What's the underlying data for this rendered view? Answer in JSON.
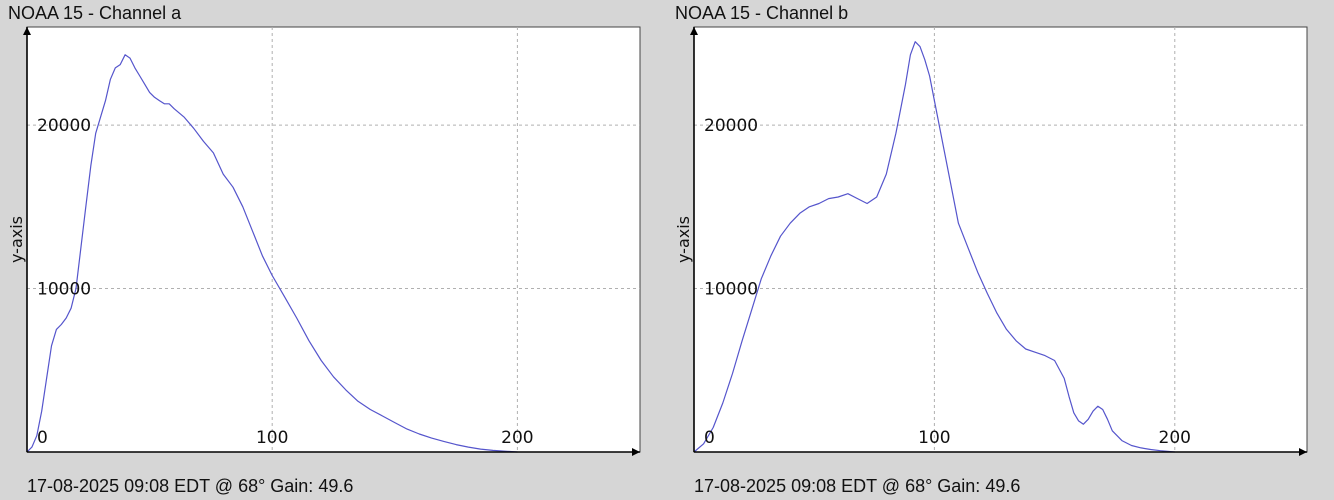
{
  "chart_data": [
    {
      "type": "line",
      "title": "NOAA 15 - Channel a",
      "footer": "17-08-2025 09:08 EDT @ 68° Gain: 49.6",
      "xlabel": "",
      "ylabel": "y-axis",
      "xlim": [
        0,
        250
      ],
      "ylim": [
        0,
        26000
      ],
      "xticks": [
        0,
        100,
        200
      ],
      "yticks": [
        10000,
        20000
      ],
      "grid": true,
      "line_color": "#5555cc",
      "x": [
        0,
        2,
        4,
        6,
        8,
        10,
        12,
        14,
        16,
        18,
        20,
        22,
        24,
        26,
        28,
        30,
        32,
        34,
        36,
        38,
        40,
        42,
        44,
        46,
        48,
        50,
        52,
        54,
        56,
        58,
        60,
        64,
        68,
        72,
        76,
        80,
        84,
        88,
        92,
        96,
        100,
        105,
        110,
        115,
        120,
        125,
        130,
        135,
        140,
        145,
        150,
        155,
        160,
        165,
        170,
        175,
        180,
        185,
        190,
        195,
        200
      ],
      "y": [
        0,
        300,
        1000,
        2500,
        4500,
        6500,
        7500,
        7800,
        8200,
        8800,
        10000,
        12500,
        15000,
        17500,
        19500,
        20500,
        21500,
        22800,
        23500,
        23700,
        24300,
        24100,
        23500,
        23000,
        22500,
        22000,
        21700,
        21500,
        21300,
        21300,
        21000,
        20500,
        19800,
        19000,
        18300,
        17000,
        16200,
        15000,
        13500,
        12000,
        10800,
        9500,
        8200,
        6800,
        5600,
        4600,
        3800,
        3100,
        2600,
        2200,
        1800,
        1400,
        1100,
        850,
        650,
        450,
        300,
        180,
        100,
        50,
        0
      ]
    },
    {
      "type": "line",
      "title": "NOAA 15 - Channel b",
      "footer": "17-08-2025 09:08 EDT @ 68° Gain: 49.6",
      "xlabel": "",
      "ylabel": "y-axis",
      "xlim": [
        0,
        255
      ],
      "ylim": [
        0,
        26000
      ],
      "xticks": [
        0,
        100,
        200
      ],
      "yticks": [
        10000,
        20000
      ],
      "grid": true,
      "line_color": "#5555cc",
      "x": [
        0,
        4,
        8,
        12,
        16,
        20,
        24,
        28,
        32,
        36,
        40,
        44,
        48,
        52,
        56,
        60,
        64,
        68,
        72,
        76,
        80,
        84,
        88,
        90,
        92,
        94,
        96,
        98,
        100,
        102,
        104,
        106,
        108,
        110,
        114,
        118,
        122,
        126,
        130,
        134,
        138,
        142,
        146,
        150,
        154,
        156,
        158,
        160,
        162,
        164,
        166,
        168,
        170,
        172,
        174,
        178,
        182,
        186,
        190,
        194,
        200
      ],
      "y": [
        0,
        500,
        1500,
        3000,
        4800,
        6800,
        8700,
        10600,
        12000,
        13200,
        14000,
        14600,
        15000,
        15200,
        15500,
        15600,
        15800,
        15500,
        15200,
        15600,
        17000,
        19500,
        22500,
        24300,
        25100,
        24800,
        24000,
        23000,
        21500,
        20000,
        18500,
        17000,
        15500,
        14000,
        12500,
        11000,
        9700,
        8500,
        7500,
        6800,
        6300,
        6100,
        5900,
        5600,
        4500,
        3400,
        2400,
        1900,
        1700,
        2000,
        2500,
        2800,
        2600,
        2000,
        1300,
        700,
        400,
        250,
        150,
        80,
        0
      ]
    }
  ]
}
